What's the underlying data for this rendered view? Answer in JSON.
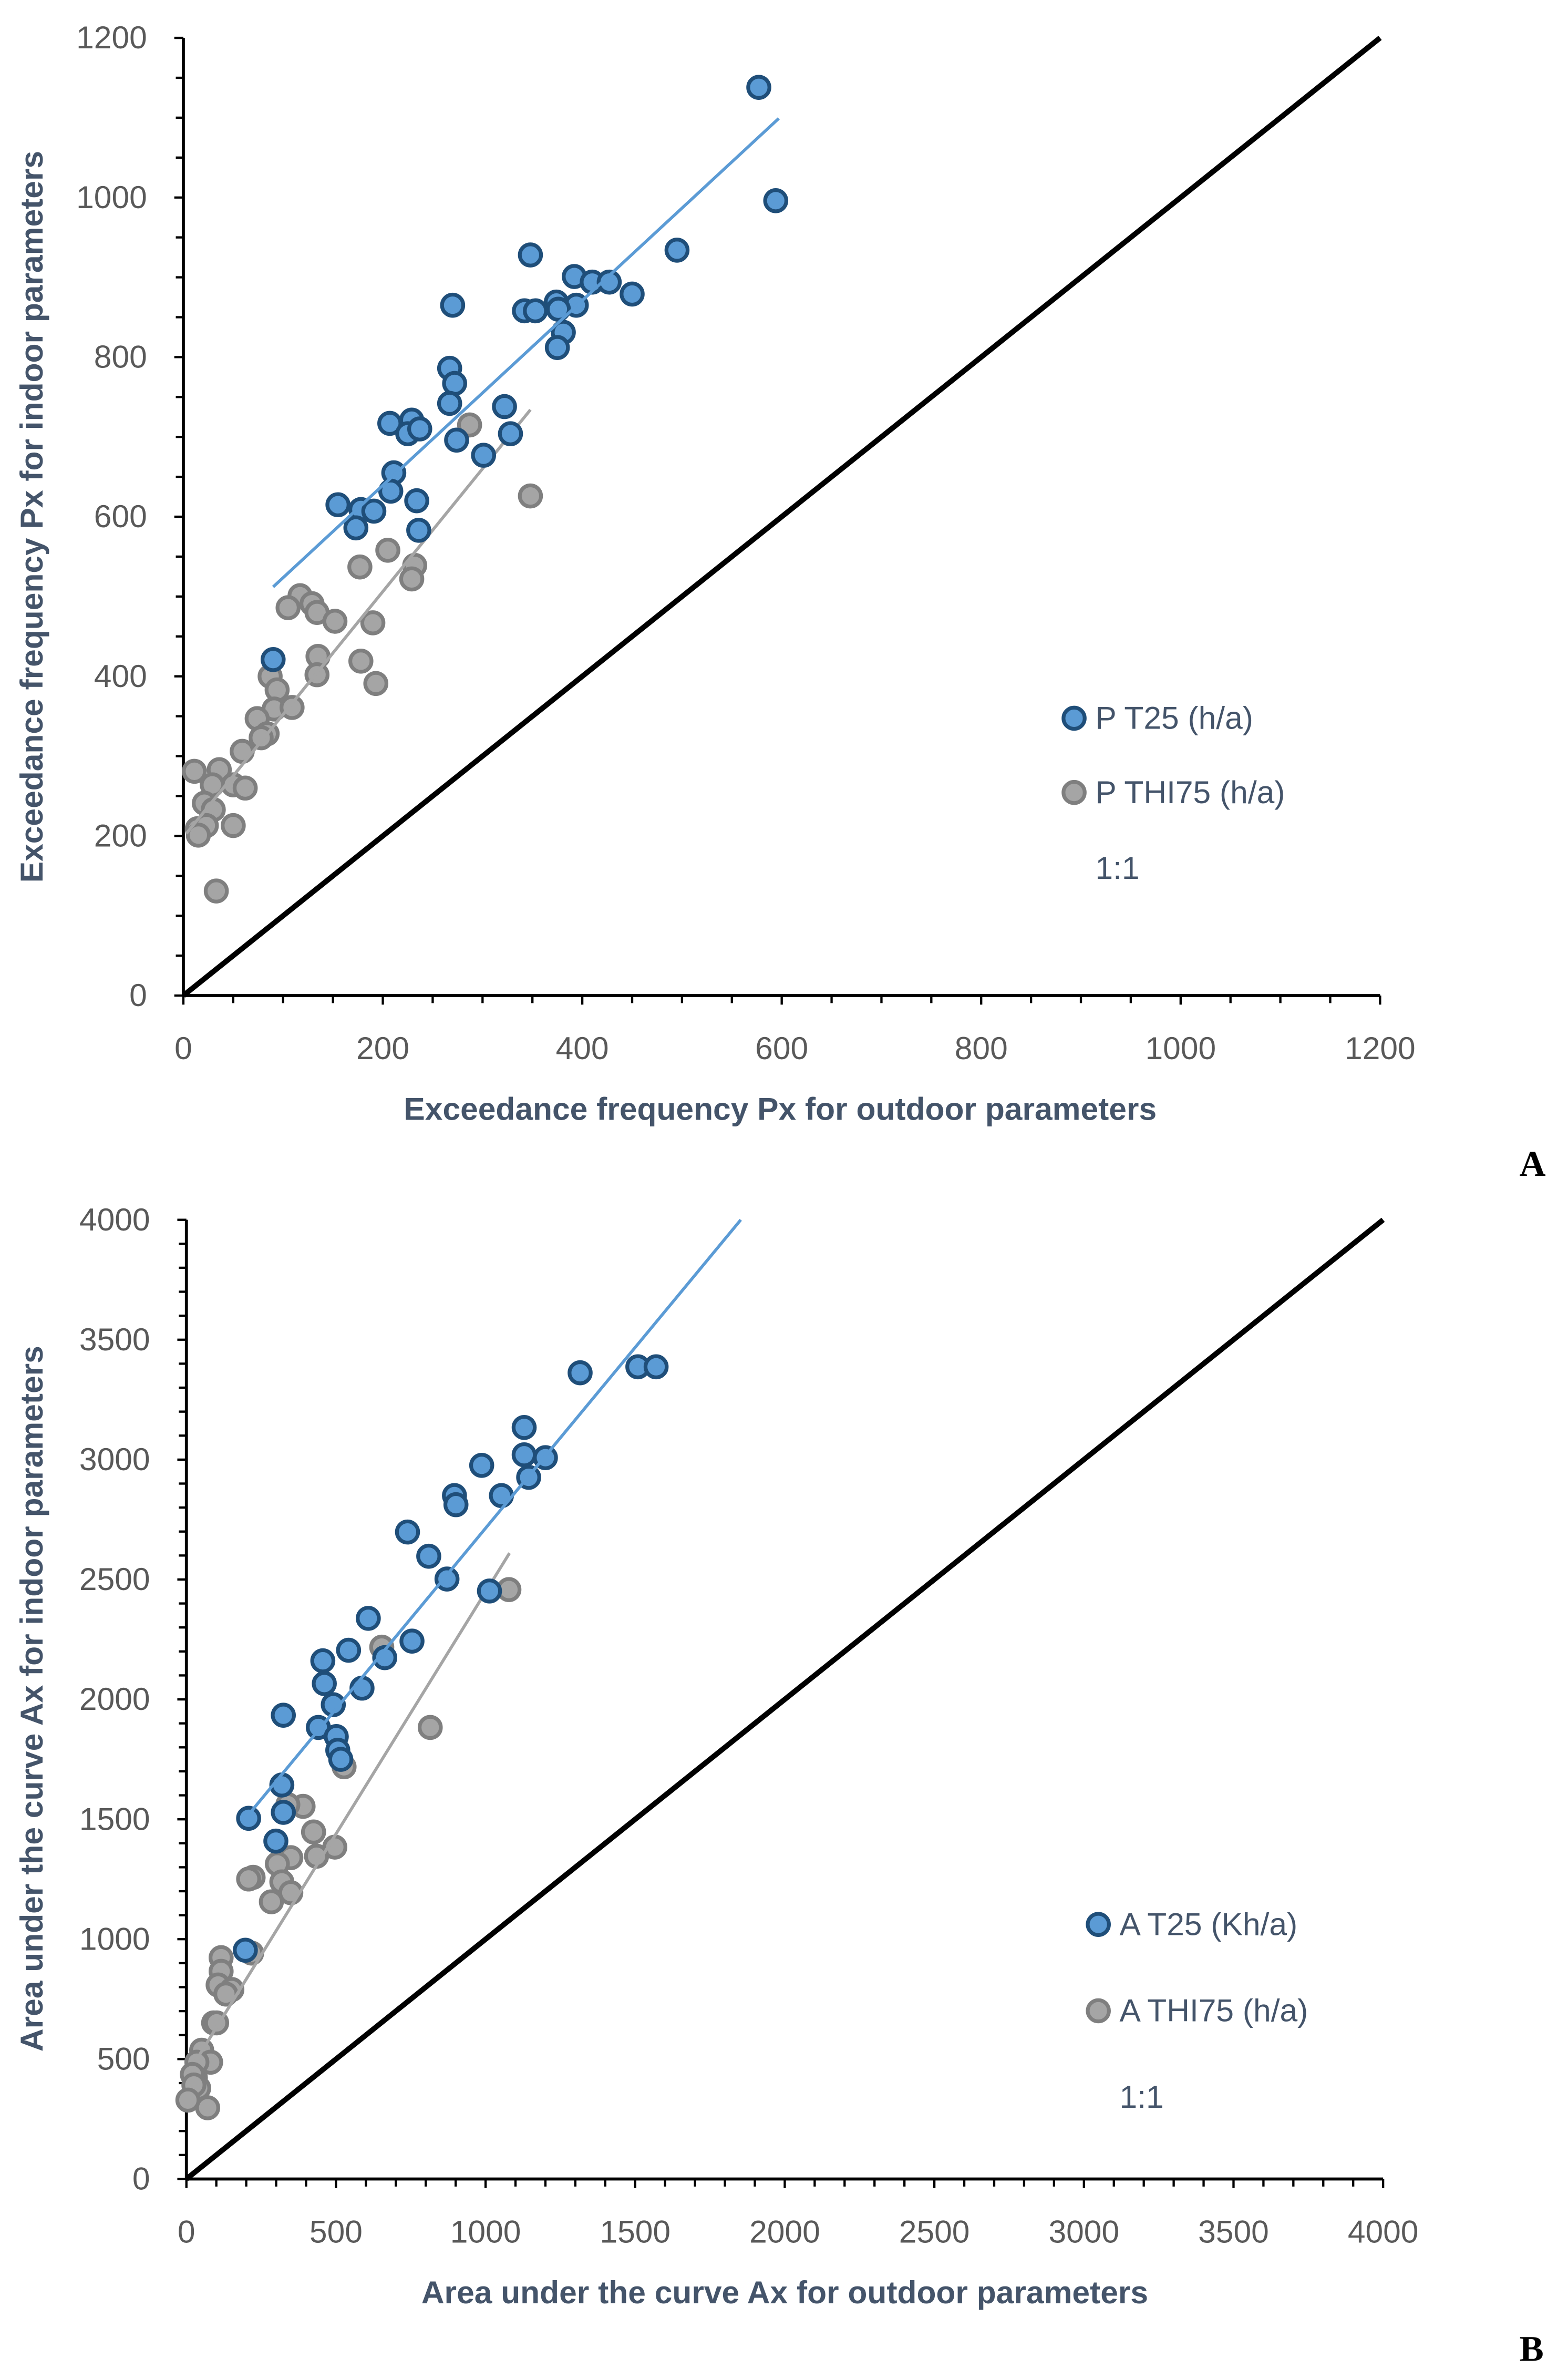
{
  "colors": {
    "blue_fill": "#5B9BD5",
    "blue_edge": "#1F4E79",
    "gray_fill": "#A5A5A5",
    "gray_edge": "#7F7F7F",
    "blue_trend": "#5B9BD5",
    "gray_trend": "#A5A5A5",
    "one_to_one": "#000000"
  },
  "chart_data": [
    {
      "type": "scatter",
      "panel_label": "A",
      "xlabel": "Exceedance frequency Px for outdoor parameters",
      "ylabel": "Exceedance frequency Px for indoor  parameters",
      "xlim": [
        0,
        1200
      ],
      "ylim": [
        0,
        1200
      ],
      "xticks": [
        "0",
        "200",
        "400",
        "600",
        "800",
        "1000",
        "1200"
      ],
      "yticks": [
        "0",
        "200",
        "400",
        "600",
        "800",
        "1000",
        "1200"
      ],
      "tick_step": 200,
      "minor_step": 50,
      "legend_position": "right-middle",
      "series": [
        {
          "name": "P T25 (h/a)",
          "color": "blue",
          "points": [
            [
              577,
              1138
            ],
            [
              594,
              996
            ],
            [
              495,
              934
            ],
            [
              348,
              928
            ],
            [
              450,
              879
            ],
            [
              392,
              901
            ],
            [
              410,
              894
            ],
            [
              427,
              894
            ],
            [
              394,
              865
            ],
            [
              374,
              869
            ],
            [
              376,
              860
            ],
            [
              342,
              858
            ],
            [
              353,
              858
            ],
            [
              270,
              865
            ],
            [
              381,
              831
            ],
            [
              375,
              812
            ],
            [
              267,
              786
            ],
            [
              272,
              767
            ],
            [
              267,
              742
            ],
            [
              322,
              738
            ],
            [
              328,
              704
            ],
            [
              301,
              677
            ],
            [
              274,
              696
            ],
            [
              207,
              717
            ],
            [
              229,
              721
            ],
            [
              225,
              704
            ],
            [
              237,
              710
            ],
            [
              211,
              655
            ],
            [
              208,
              632
            ],
            [
              234,
              620
            ],
            [
              155,
              615
            ],
            [
              178,
              609
            ],
            [
              191,
              607
            ],
            [
              173,
              586
            ],
            [
              236,
              583
            ],
            [
              90,
              421
            ]
          ],
          "trendline": [
            [
              90,
              512
            ],
            [
              597,
              1099
            ]
          ]
        },
        {
          "name": "P THI75  (h/a)",
          "color": "gray",
          "points": [
            [
              287,
              715
            ],
            [
              348,
              626
            ],
            [
              205,
              558
            ],
            [
              177,
              537
            ],
            [
              232,
              539
            ],
            [
              229,
              522
            ],
            [
              117,
              501
            ],
            [
              105,
              486
            ],
            [
              129,
              491
            ],
            [
              134,
              480
            ],
            [
              152,
              469
            ],
            [
              190,
              467
            ],
            [
              135,
              425
            ],
            [
              134,
              402
            ],
            [
              178,
              419
            ],
            [
              193,
              391
            ],
            [
              87,
              400
            ],
            [
              94,
              383
            ],
            [
              91,
              359
            ],
            [
              109,
              361
            ],
            [
              74,
              347
            ],
            [
              84,
              328
            ],
            [
              78,
              323
            ],
            [
              59,
              306
            ],
            [
              11,
              281
            ],
            [
              36,
              283
            ],
            [
              50,
              264
            ],
            [
              62,
              260
            ],
            [
              29,
              264
            ],
            [
              21,
              241
            ],
            [
              30,
              233
            ],
            [
              14,
              209
            ],
            [
              23,
              213
            ],
            [
              50,
              213
            ],
            [
              15,
              201
            ],
            [
              33,
              131
            ]
          ],
          "trendline": [
            [
              3,
              203
            ],
            [
              348,
              734
            ]
          ]
        },
        {
          "name": "1:1",
          "color": "black",
          "line": [
            [
              0,
              0
            ],
            [
              1200,
              1200
            ]
          ]
        }
      ]
    },
    {
      "type": "scatter",
      "panel_label": "B",
      "xlabel": "Area under the curve Ax for outdoor parameters",
      "ylabel": "Area under the curve Ax for indoor  parameters",
      "xlim": [
        0,
        4000
      ],
      "ylim": [
        0,
        4000
      ],
      "xticks": [
        "0",
        "500",
        "1000",
        "1500",
        "2000",
        "2500",
        "3000",
        "3500",
        "4000"
      ],
      "yticks": [
        "0",
        "500",
        "1000",
        "1500",
        "2000",
        "2500",
        "3000",
        "3500",
        "4000"
      ],
      "tick_step": 500,
      "minor_step": 100,
      "legend_position": "right-middle",
      "series": [
        {
          "name": "A T25  (Kh/a)",
          "color": "blue",
          "points": [
            [
              1316,
              3362
            ],
            [
              1509,
              3387
            ],
            [
              1570,
              3387
            ],
            [
              1129,
              3134
            ],
            [
              987,
              2976
            ],
            [
              1129,
              3020
            ],
            [
              1200,
              3008
            ],
            [
              1144,
              2926
            ],
            [
              896,
              2850
            ],
            [
              901,
              2812
            ],
            [
              1053,
              2850
            ],
            [
              739,
              2698
            ],
            [
              810,
              2597
            ],
            [
              871,
              2502
            ],
            [
              1013,
              2452
            ],
            [
              608,
              2338
            ],
            [
              754,
              2243
            ],
            [
              542,
              2205
            ],
            [
              663,
              2174
            ],
            [
              456,
              2161
            ],
            [
              461,
              2066
            ],
            [
              587,
              2047
            ],
            [
              491,
              1978
            ],
            [
              324,
              1934
            ],
            [
              441,
              1883
            ],
            [
              501,
              1845
            ],
            [
              506,
              1788
            ],
            [
              516,
              1750
            ],
            [
              319,
              1643
            ],
            [
              324,
              1529
            ],
            [
              208,
              1504
            ],
            [
              299,
              1409
            ],
            [
              197,
              954
            ]
          ],
          "trendline": [
            [
              218,
              1535
            ],
            [
              1853,
              4000
            ]
          ]
        },
        {
          "name": "A THI75  (h/a)",
          "color": "gray",
          "points": [
            [
              1078,
              2458
            ],
            [
              653,
              2218
            ],
            [
              815,
              1883
            ],
            [
              527,
              1719
            ],
            [
              390,
              1554
            ],
            [
              339,
              1561
            ],
            [
              425,
              1447
            ],
            [
              496,
              1384
            ],
            [
              435,
              1346
            ],
            [
              349,
              1340
            ],
            [
              304,
              1314
            ],
            [
              223,
              1258
            ],
            [
              208,
              1251
            ],
            [
              319,
              1239
            ],
            [
              349,
              1194
            ],
            [
              284,
              1156
            ],
            [
              218,
              942
            ],
            [
              116,
              923
            ],
            [
              116,
              866
            ],
            [
              106,
              809
            ],
            [
              152,
              790
            ],
            [
              132,
              771
            ],
            [
              91,
              651
            ],
            [
              101,
              651
            ],
            [
              51,
              537
            ],
            [
              81,
              487
            ],
            [
              35,
              487
            ],
            [
              30,
              423
            ],
            [
              20,
              436
            ],
            [
              41,
              379
            ],
            [
              25,
              392
            ],
            [
              71,
              297
            ],
            [
              5,
              329
            ]
          ],
          "trendline": [
            [
              30,
              490
            ],
            [
              1080,
              2610
            ]
          ]
        },
        {
          "name": "1:1",
          "color": "black",
          "line": [
            [
              0,
              0
            ],
            [
              4000,
              4000
            ]
          ]
        }
      ]
    }
  ]
}
